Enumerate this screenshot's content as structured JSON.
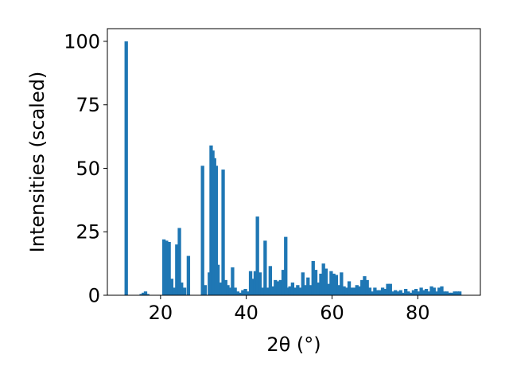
{
  "chart_data": {
    "type": "bar",
    "title": "",
    "xlabel": "2θ (°)",
    "ylabel": "Intensities (scaled)",
    "xlim": [
      7.6,
      94.6
    ],
    "ylim": [
      0,
      105
    ],
    "xticks": [
      20,
      40,
      60,
      80
    ],
    "yticks": [
      0,
      25,
      50,
      75,
      100
    ],
    "grid": false,
    "bar_color": "#1f77b4",
    "bar_width": 0.8,
    "series": [
      {
        "x": [
          12.0,
          15.5,
          16.0,
          16.5,
          17.0,
          20.8,
          21.4,
          22.0,
          22.6,
          23.2,
          23.8,
          24.4,
          24.9,
          25.6,
          26.5,
          29.8,
          30.4,
          31.4,
          31.8,
          32.2,
          32.6,
          33.0,
          33.4,
          34.0,
          34.6,
          35.2,
          35.7,
          36.2,
          36.8,
          37.4,
          38.0,
          38.6,
          39.2,
          39.8,
          40.4,
          41.0,
          41.6,
          42.1,
          42.6,
          43.2,
          43.8,
          44.4,
          45.0,
          45.6,
          46.2,
          46.8,
          47.4,
          48.0,
          48.6,
          49.2,
          49.7,
          50.2,
          50.8,
          51.4,
          52.0,
          52.6,
          53.2,
          53.8,
          54.4,
          55.0,
          55.6,
          56.2,
          56.8,
          57.4,
          58.0,
          58.6,
          59.2,
          59.8,
          60.4,
          61.0,
          61.6,
          62.2,
          62.8,
          63.4,
          64.0,
          64.6,
          65.2,
          65.8,
          66.4,
          67.0,
          67.6,
          68.2,
          68.8,
          69.4,
          70.0,
          70.6,
          71.2,
          71.8,
          72.4,
          73.0,
          73.6,
          74.2,
          74.8,
          75.4,
          76.0,
          76.6,
          77.2,
          77.8,
          78.4,
          79.0,
          79.6,
          80.2,
          80.8,
          81.4,
          82.0,
          82.6,
          83.2,
          83.8,
          84.4,
          85.0,
          85.6,
          86.2,
          86.8,
          87.4,
          88.0,
          88.6,
          89.2,
          89.8
        ],
        "values": [
          100,
          0.5,
          1.0,
          1.5,
          0.5,
          22,
          21.5,
          21,
          6.5,
          3,
          20,
          26.5,
          5,
          3,
          15.5,
          51,
          4,
          9,
          59,
          57,
          54,
          51,
          12,
          5,
          49.5,
          6,
          4,
          3,
          11,
          3,
          1.5,
          1,
          2,
          2.5,
          1.5,
          9.5,
          6.5,
          9.5,
          31,
          9,
          3,
          21.5,
          3,
          11.5,
          3.5,
          6,
          5.5,
          6,
          10,
          23,
          3,
          3.5,
          5,
          3,
          4,
          3,
          9,
          4,
          7,
          4,
          13.5,
          10,
          5,
          8.5,
          12.5,
          10.5,
          4.5,
          9.5,
          8.5,
          8,
          4,
          9,
          3.5,
          3,
          5.5,
          3,
          3,
          4,
          3.5,
          6,
          7.5,
          6,
          3,
          1.5,
          3,
          2,
          2,
          3,
          2.5,
          4.5,
          4.5,
          1.5,
          2,
          1.5,
          2,
          1,
          2.5,
          1.5,
          1,
          2,
          2.5,
          1.5,
          3,
          2,
          2.5,
          1.5,
          3.5,
          3,
          1.5,
          3,
          3.5,
          1.5,
          1.5,
          1,
          1,
          1.5,
          1.5,
          1.5
        ]
      }
    ]
  }
}
